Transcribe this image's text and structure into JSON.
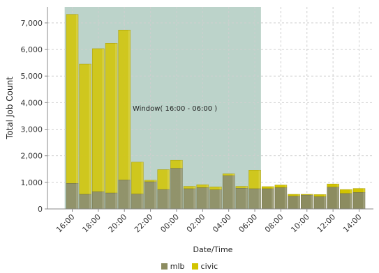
{
  "chart_data": {
    "type": "bar",
    "stacked": true,
    "xlabel": "Date/Time",
    "ylabel": "Total Job Count",
    "ylim": [
      0,
      7600
    ],
    "yticks": [
      0,
      1000,
      2000,
      3000,
      4000,
      5000,
      6000,
      7000
    ],
    "ytick_labels": [
      "0",
      "1,000",
      "2,000",
      "3,000",
      "4,000",
      "5,000",
      "6,000",
      "7,000"
    ],
    "xtick_labels": [
      "16:00",
      "18:00",
      "20:00",
      "22:00",
      "00:00",
      "02:00",
      "04:00",
      "06:00",
      "08:00",
      "10:00",
      "12:00",
      "14:00"
    ],
    "xtick_every": 2,
    "categories": [
      "16:00",
      "17:00",
      "18:00",
      "19:00",
      "20:00",
      "21:00",
      "22:00",
      "23:00",
      "00:00",
      "01:00",
      "02:00",
      "03:00",
      "04:00",
      "05:00",
      "06:00",
      "07:00",
      "08:00",
      "09:00",
      "10:00",
      "11:00",
      "12:00",
      "13:00",
      "14:00"
    ],
    "series": [
      {
        "name": "mlb",
        "color": "#8c8c60",
        "values": [
          960,
          550,
          650,
          600,
          1090,
          560,
          1020,
          730,
          1530,
          760,
          800,
          720,
          1250,
          780,
          760,
          760,
          800,
          480,
          520,
          460,
          820,
          580,
          620
        ]
      },
      {
        "name": "civic",
        "color": "#d2c400",
        "values": [
          6360,
          4900,
          5380,
          5630,
          5640,
          1200,
          60,
          750,
          300,
          90,
          110,
          110,
          70,
          70,
          700,
          80,
          100,
          70,
          30,
          80,
          120,
          150,
          150
        ]
      }
    ],
    "window": {
      "label": "Window( 16:00 - 06:00 )",
      "start_index": 0,
      "end_index": 14,
      "color": "#8fb5a6"
    },
    "legend_position": "bottom",
    "grid": true
  }
}
